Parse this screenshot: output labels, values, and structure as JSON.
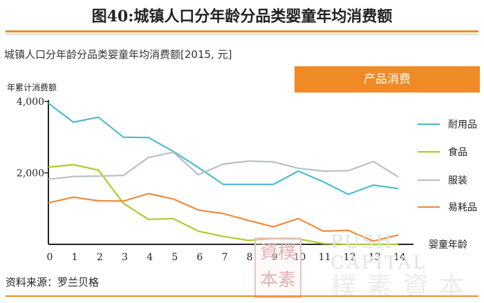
{
  "figure_title": "图40:城镇人口分年龄分品类婴童年均消费额",
  "chart_title": "城镇人口分年龄分品类婴童年均消费额[2015, 元]",
  "banner": "产品消费",
  "source": "资料来源：罗兰贝格",
  "watermark": {
    "seal": "資樸本素",
    "english": "PUSH CAPITAL",
    "chinese": "樸素資本"
  },
  "colors": {
    "durable": "#4bbccb",
    "food": "#a8cc2a",
    "clothing": "#b8bfc4",
    "consumables": "#f08a3c",
    "accent": "#f08a24"
  },
  "chart_data": {
    "type": "line",
    "ylabel": "年累计消费额",
    "xlabel": "婴童年龄",
    "x": [
      0,
      1,
      2,
      3,
      4,
      5,
      6,
      7,
      8,
      9,
      10,
      11,
      12,
      13,
      14
    ],
    "ylim": [
      0,
      4000
    ],
    "yticks": [
      4000,
      2000
    ],
    "ytick_labels": [
      "4,000",
      "2,000"
    ],
    "xtick_labels": [
      "0",
      "1",
      "2",
      "3",
      "4",
      "5",
      "6",
      "7",
      "8",
      "9",
      "10",
      "11",
      "12",
      "13",
      "14"
    ],
    "grid": false,
    "legend_position": "right",
    "series": [
      {
        "name": "耐用品",
        "color": "#4bbccb",
        "values": [
          3950,
          3420,
          3560,
          3000,
          2990,
          2600,
          2150,
          1680,
          1680,
          1680,
          2050,
          1750,
          1400,
          1660,
          1560
        ]
      },
      {
        "name": "食品",
        "color": "#a8cc2a",
        "values": [
          2160,
          2230,
          2080,
          1150,
          700,
          720,
          370,
          220,
          110,
          160,
          150,
          20,
          0,
          0,
          0
        ]
      },
      {
        "name": "服装",
        "color": "#b8bfc4",
        "values": [
          1820,
          1900,
          1910,
          1930,
          2430,
          2580,
          1950,
          2250,
          2330,
          2310,
          2130,
          2050,
          2060,
          2320,
          1890
        ]
      },
      {
        "name": "易耗品",
        "color": "#f08a3c",
        "values": [
          1160,
          1320,
          1220,
          1210,
          1420,
          1270,
          960,
          860,
          670,
          490,
          720,
          370,
          390,
          90,
          260
        ]
      }
    ]
  }
}
